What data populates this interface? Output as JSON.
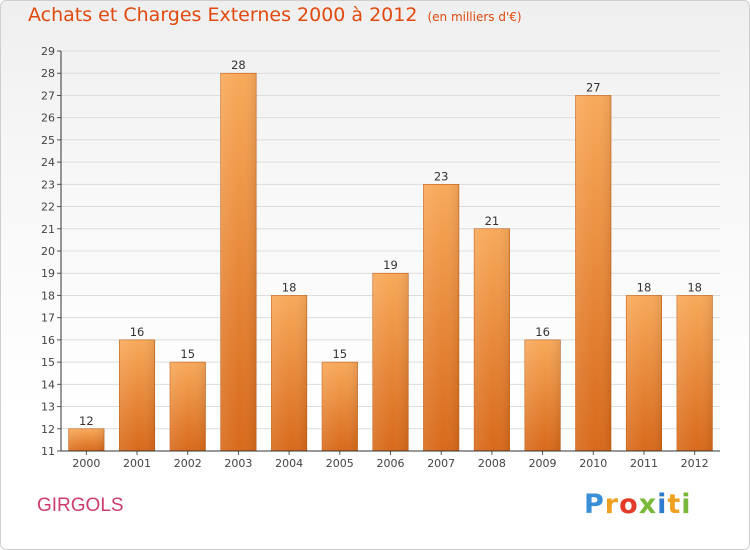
{
  "title": "Achats et Charges Externes 2000 à 2012",
  "unit": "(en milliers d'€)",
  "commune": "GIRGOLS",
  "brand": "Proxiti",
  "colors": {
    "title": "#e04a10",
    "commune": "#cc3c6e",
    "bar_light": "#f8a95a",
    "bar_dark": "#d8691a",
    "axis": "#333333"
  },
  "chart_data": {
    "type": "bar",
    "categories": [
      "2000",
      "2001",
      "2002",
      "2003",
      "2004",
      "2005",
      "2006",
      "2007",
      "2008",
      "2009",
      "2010",
      "2011",
      "2012"
    ],
    "series": [
      {
        "values": [
          12,
          16,
          15,
          28,
          18,
          15,
          19,
          23,
          21,
          16,
          27,
          18,
          18
        ]
      }
    ],
    "ylim": [
      11,
      29
    ],
    "yticks": [
      11,
      12,
      13,
      14,
      15,
      16,
      17,
      18,
      19,
      20,
      21,
      22,
      23,
      24,
      25,
      26,
      27,
      28,
      29
    ],
    "grid": true,
    "legend": "none",
    "data_labels": true
  }
}
